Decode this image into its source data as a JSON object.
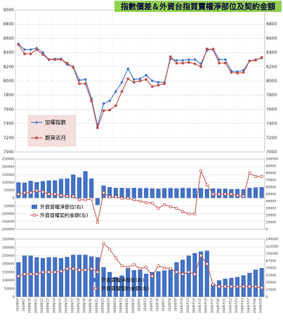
{
  "chart_data": [
    {
      "type": "line",
      "title": "指數價差＆外資台指買賣權淨部位及契約金額",
      "dates": [
        "10/6/3",
        "10/6/6",
        "10/6/7",
        "10/6/8",
        "10/6/9",
        "10/6/10",
        "10/6/13",
        "10/6/14",
        "10/6/15",
        "10/6/16",
        "10/6/17",
        "10/6/20",
        "10/6/21",
        "10/6/22",
        "10/6/23",
        "10/6/24",
        "10/6/27",
        "10/6/28",
        "10/6/29",
        "10/6/30",
        "10/7/1",
        "10/7/4",
        "10/7/5",
        "10/7/6",
        "10/7/7",
        "10/7/8",
        "10/7/11",
        "10/7/12",
        "10/7/13",
        "10/7/14",
        "10/7/15",
        "10/7/18",
        "10/7/19",
        "10/7/20",
        "10/7/21",
        "10/7/22",
        "10/7/25",
        "10/7/26",
        "10/7/27",
        "10/7/28",
        "10/7/29"
      ],
      "date_labels": [
        "104/06/6",
        "104/06/7",
        "104/06/10",
        "104/06/11",
        "104/06/12",
        "104/06/13",
        "104/06/14",
        "104/06/15",
        "104/06/16",
        "104/06/17",
        "104/06/18",
        "104/06/19",
        "104/06/20",
        "104/06/21",
        "104/06/22",
        "104/06/23",
        "104/06/24",
        "104/06/25",
        "104/06/26",
        "104/06/27",
        "104/07/1",
        "104/07/2",
        "104/07/3",
        "104/07/6",
        "104/07/7",
        "104/07/8",
        "104/07/9",
        "104/07/10",
        "104/07/13",
        "104/07/14",
        "104/07/15",
        "104/07/16",
        "104/07/17",
        "104/07/20",
        "104/07/21",
        "104/07/22",
        "104/07/23",
        "104/07/24",
        "104/07/27",
        "104/07/28",
        "104/07/29"
      ],
      "yticks_left": [
        7000,
        7200,
        7400,
        7600,
        7800,
        8000,
        8200,
        8400,
        8600,
        8800,
        9000
      ],
      "yticks_right": [
        7000,
        7200,
        7400,
        7600,
        7800,
        8000,
        8200,
        8400,
        8600,
        8800,
        9000
      ],
      "ylim": [
        7000,
        9000
      ],
      "series": [
        {
          "name": "加權指數",
          "color": "#4472c4",
          "marker": "diamond",
          "values": [
            8520,
            8440,
            8440,
            8460,
            8400,
            8300,
            8310,
            8310,
            8230,
            8200,
            8010,
            8020,
            7750,
            7370,
            7680,
            7720,
            7850,
            7980,
            8170,
            8020,
            8030,
            8080,
            8000,
            7980,
            7980,
            8310,
            8290,
            8290,
            8300,
            8300,
            8240,
            8430,
            8450,
            8300,
            8300,
            8140,
            8130,
            8150,
            8280,
            8300,
            8320
          ]
        },
        {
          "name": "期貨近月",
          "color": "#c0504d",
          "marker": "square",
          "values": [
            8510,
            8380,
            8380,
            8440,
            8370,
            8300,
            8300,
            8300,
            8250,
            8190,
            7960,
            7960,
            7720,
            7340,
            7580,
            7590,
            7650,
            7850,
            8030,
            7980,
            8000,
            8020,
            7920,
            7940,
            7960,
            8340,
            8250,
            8250,
            8260,
            8240,
            8200,
            8450,
            8440,
            8250,
            8250,
            8120,
            8110,
            8120,
            8280,
            8290,
            8330
          ]
        }
      ]
    },
    {
      "type": "bar",
      "yticks_left": [
        -200000,
        -150000,
        -100000,
        -50000,
        0,
        50000,
        100000,
        150000,
        200000,
        250000
      ],
      "yticks_right": [
        0,
        10000,
        20000,
        30000,
        40000,
        50000,
        60000,
        70000,
        80000,
        90000,
        100000
      ],
      "ylim_left": [
        -200000,
        250000
      ],
      "ylim_right": [
        0,
        100000
      ],
      "series": [
        {
          "name": "外資買權淨部位(右)",
          "color": "#4472c4",
          "axis": "left",
          "values": [
            100000,
            98000,
            110000,
            102000,
            108000,
            112000,
            113000,
            123000,
            125000,
            150000,
            132000,
            172000,
            125000,
            -45000,
            80000,
            70000,
            65000,
            65000,
            63000,
            65000,
            63000,
            64000,
            62000,
            60000,
            63000,
            64000,
            62000,
            65000,
            64000,
            62000,
            64000,
            58000,
            62000,
            60000,
            60000,
            57000,
            58000,
            57000,
            65000,
            68000,
            70000
          ]
        },
        {
          "name": "外資買權契約金額(左)",
          "color": "#c0504d",
          "axis": "right",
          "values": [
            50000,
            52000,
            52000,
            55000,
            53000,
            50000,
            50000,
            48000,
            47000,
            47000,
            42000,
            42000,
            43000,
            10000,
            52000,
            46000,
            46000,
            44000,
            44000,
            42000,
            40000,
            38000,
            37000,
            30000,
            35000,
            32000,
            30000,
            25000,
            22000,
            22000,
            83000,
            63000,
            50000,
            50000,
            50000,
            50000,
            48000,
            47000,
            80000,
            75000,
            75000
          ]
        }
      ]
    },
    {
      "type": "bar",
      "yticks_left": [
        0,
        50000,
        100000,
        150000,
        200000,
        250000,
        300000,
        350000
      ],
      "yticks_right": [
        0,
        17500,
        35000,
        52500,
        70000,
        87500,
        105000,
        122500,
        140000
      ],
      "ylim_left": [
        0,
        350000
      ],
      "ylim_right": [
        0,
        140000
      ],
      "series": [
        {
          "name": "外資賣權淨部位(右)",
          "color": "#4472c4",
          "axis": "left",
          "values": [
            210000,
            250000,
            250000,
            240000,
            235000,
            240000,
            240000,
            235000,
            242000,
            255000,
            255000,
            255000,
            245000,
            240000,
            180000,
            150000,
            120000,
            130000,
            175000,
            162000,
            165000,
            140000,
            150000,
            155000,
            160000,
            165000,
            210000,
            225000,
            250000,
            265000,
            275000,
            280000,
            80000,
            100000,
            110000,
            115000,
            120000,
            130000,
            145000,
            165000,
            175000
          ]
        },
        {
          "name": "外資賣權契約金額(左)",
          "color": "#c0504d",
          "axis": "right",
          "values": [
            50000,
            55000,
            55000,
            55000,
            60000,
            60000,
            60000,
            62000,
            68000,
            68000,
            65000,
            65000,
            68000,
            60000,
            130000,
            115000,
            95000,
            75000,
            72000,
            78000,
            68000,
            72000,
            50000,
            75000,
            70000,
            68000,
            60000,
            55000,
            60000,
            55000,
            100000,
            80000,
            30000,
            25000,
            25000,
            25000,
            25000,
            25000,
            25000,
            25000,
            22000
          ]
        }
      ]
    }
  ]
}
